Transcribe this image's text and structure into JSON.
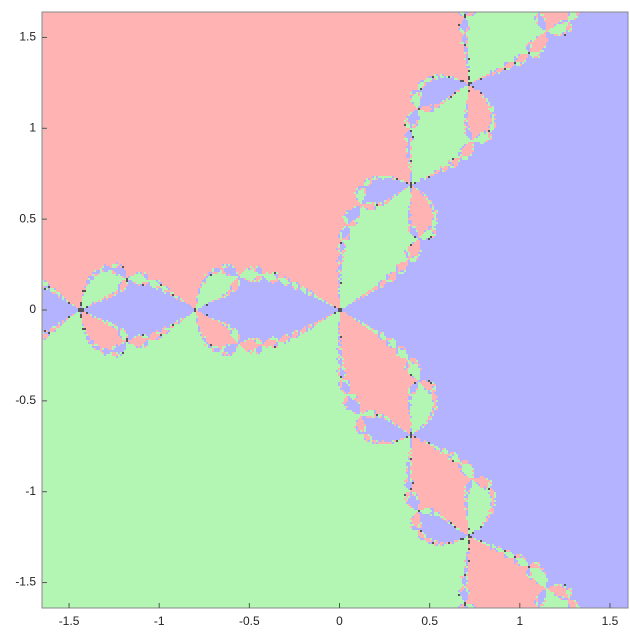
{
  "chart_data": {
    "type": "fractal",
    "xlim": [
      -1.65,
      1.6
    ],
    "ylim": [
      -1.64,
      1.64
    ],
    "xticks": [
      -1.5,
      -1,
      -0.5,
      0,
      0.5,
      1,
      1.5
    ],
    "yticks": [
      -1.5,
      -1,
      -0.5,
      0,
      0.5,
      1,
      1.5
    ],
    "colors": [
      "#b3b3ff",
      "#ffb3b3",
      "#b3f5b3"
    ]
  }
}
